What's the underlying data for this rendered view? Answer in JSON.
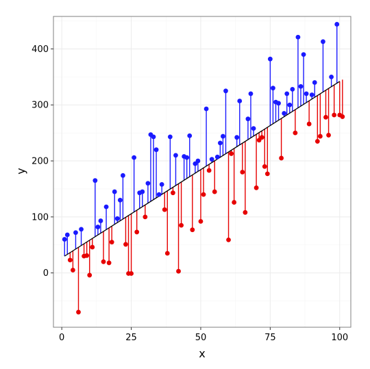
{
  "chart_data": {
    "type": "scatter",
    "title": "",
    "xlabel": "x",
    "ylabel": "y",
    "xlim": [
      -3,
      104
    ],
    "ylim": [
      -97,
      458
    ],
    "xticks": [
      0,
      25,
      50,
      75,
      100
    ],
    "yticks": [
      0,
      100,
      200,
      300,
      400
    ],
    "xtick_labels": [
      "0",
      "25",
      "50",
      "75",
      "100"
    ],
    "ytick_labels": [
      "0",
      "100",
      "200",
      "300",
      "400"
    ],
    "grid": true,
    "legend": "none",
    "fit_line": {
      "x": [
        1,
        100
      ],
      "y": [
        30,
        342
      ]
    },
    "colors": {
      "above": "#1a1aff",
      "below": "#e60000",
      "fit": "#000000",
      "grid": "#ebebeb",
      "panel_border": "#7f7f7f"
    },
    "points": [
      {
        "x": 1,
        "y": 60
      },
      {
        "x": 2,
        "y": 68
      },
      {
        "x": 3,
        "y": 23
      },
      {
        "x": 4,
        "y": 5
      },
      {
        "x": 5,
        "y": 72
      },
      {
        "x": 6,
        "y": -70
      },
      {
        "x": 7,
        "y": 78
      },
      {
        "x": 8,
        "y": 30
      },
      {
        "x": 9,
        "y": 31
      },
      {
        "x": 10,
        "y": -4
      },
      {
        "x": 11,
        "y": 46
      },
      {
        "x": 12,
        "y": 165
      },
      {
        "x": 13,
        "y": 82
      },
      {
        "x": 14,
        "y": 93
      },
      {
        "x": 15,
        "y": 20
      },
      {
        "x": 16,
        "y": 118
      },
      {
        "x": 17,
        "y": 18
      },
      {
        "x": 18,
        "y": 55
      },
      {
        "x": 19,
        "y": 145
      },
      {
        "x": 20,
        "y": 97
      },
      {
        "x": 21,
        "y": 130
      },
      {
        "x": 22,
        "y": 174
      },
      {
        "x": 23,
        "y": 51
      },
      {
        "x": 24,
        "y": -1
      },
      {
        "x": 25,
        "y": -1
      },
      {
        "x": 26,
        "y": 206
      },
      {
        "x": 27,
        "y": 73
      },
      {
        "x": 28,
        "y": 143
      },
      {
        "x": 29,
        "y": 145
      },
      {
        "x": 30,
        "y": 100
      },
      {
        "x": 31,
        "y": 160
      },
      {
        "x": 32,
        "y": 247
      },
      {
        "x": 33,
        "y": 243
      },
      {
        "x": 34,
        "y": 220
      },
      {
        "x": 35,
        "y": 140
      },
      {
        "x": 36,
        "y": 158
      },
      {
        "x": 37,
        "y": 113
      },
      {
        "x": 38,
        "y": 35
      },
      {
        "x": 39,
        "y": 243
      },
      {
        "x": 40,
        "y": 143
      },
      {
        "x": 41,
        "y": 210
      },
      {
        "x": 42,
        "y": 3
      },
      {
        "x": 43,
        "y": 85
      },
      {
        "x": 44,
        "y": 208
      },
      {
        "x": 45,
        "y": 206
      },
      {
        "x": 46,
        "y": 245
      },
      {
        "x": 47,
        "y": 77
      },
      {
        "x": 48,
        "y": 195
      },
      {
        "x": 49,
        "y": 200
      },
      {
        "x": 50,
        "y": 92
      },
      {
        "x": 51,
        "y": 140
      },
      {
        "x": 52,
        "y": 293
      },
      {
        "x": 53,
        "y": 183
      },
      {
        "x": 54,
        "y": 203
      },
      {
        "x": 55,
        "y": 145
      },
      {
        "x": 56,
        "y": 207
      },
      {
        "x": 57,
        "y": 232
      },
      {
        "x": 58,
        "y": 244
      },
      {
        "x": 59,
        "y": 325
      },
      {
        "x": 60,
        "y": 59
      },
      {
        "x": 61,
        "y": 213
      },
      {
        "x": 62,
        "y": 126
      },
      {
        "x": 63,
        "y": 242
      },
      {
        "x": 64,
        "y": 307
      },
      {
        "x": 65,
        "y": 180
      },
      {
        "x": 66,
        "y": 108
      },
      {
        "x": 67,
        "y": 275
      },
      {
        "x": 68,
        "y": 320
      },
      {
        "x": 69,
        "y": 258
      },
      {
        "x": 70,
        "y": 152
      },
      {
        "x": 71,
        "y": 237
      },
      {
        "x": 72,
        "y": 242
      },
      {
        "x": 73,
        "y": 190
      },
      {
        "x": 74,
        "y": 177
      },
      {
        "x": 75,
        "y": 382
      },
      {
        "x": 76,
        "y": 330
      },
      {
        "x": 77,
        "y": 305
      },
      {
        "x": 78,
        "y": 303
      },
      {
        "x": 79,
        "y": 205
      },
      {
        "x": 80,
        "y": 285
      },
      {
        "x": 81,
        "y": 320
      },
      {
        "x": 82,
        "y": 300
      },
      {
        "x": 83,
        "y": 328
      },
      {
        "x": 84,
        "y": 250
      },
      {
        "x": 85,
        "y": 421
      },
      {
        "x": 86,
        "y": 333
      },
      {
        "x": 87,
        "y": 390
      },
      {
        "x": 88,
        "y": 320
      },
      {
        "x": 89,
        "y": 266
      },
      {
        "x": 90,
        "y": 318
      },
      {
        "x": 91,
        "y": 340
      },
      {
        "x": 92,
        "y": 235
      },
      {
        "x": 93,
        "y": 244
      },
      {
        "x": 94,
        "y": 413
      },
      {
        "x": 95,
        "y": 278
      },
      {
        "x": 96,
        "y": 246
      },
      {
        "x": 97,
        "y": 350
      },
      {
        "x": 98,
        "y": 282
      },
      {
        "x": 99,
        "y": 444
      },
      {
        "x": 100,
        "y": 282
      },
      {
        "x": 101,
        "y": 279
      }
    ]
  }
}
